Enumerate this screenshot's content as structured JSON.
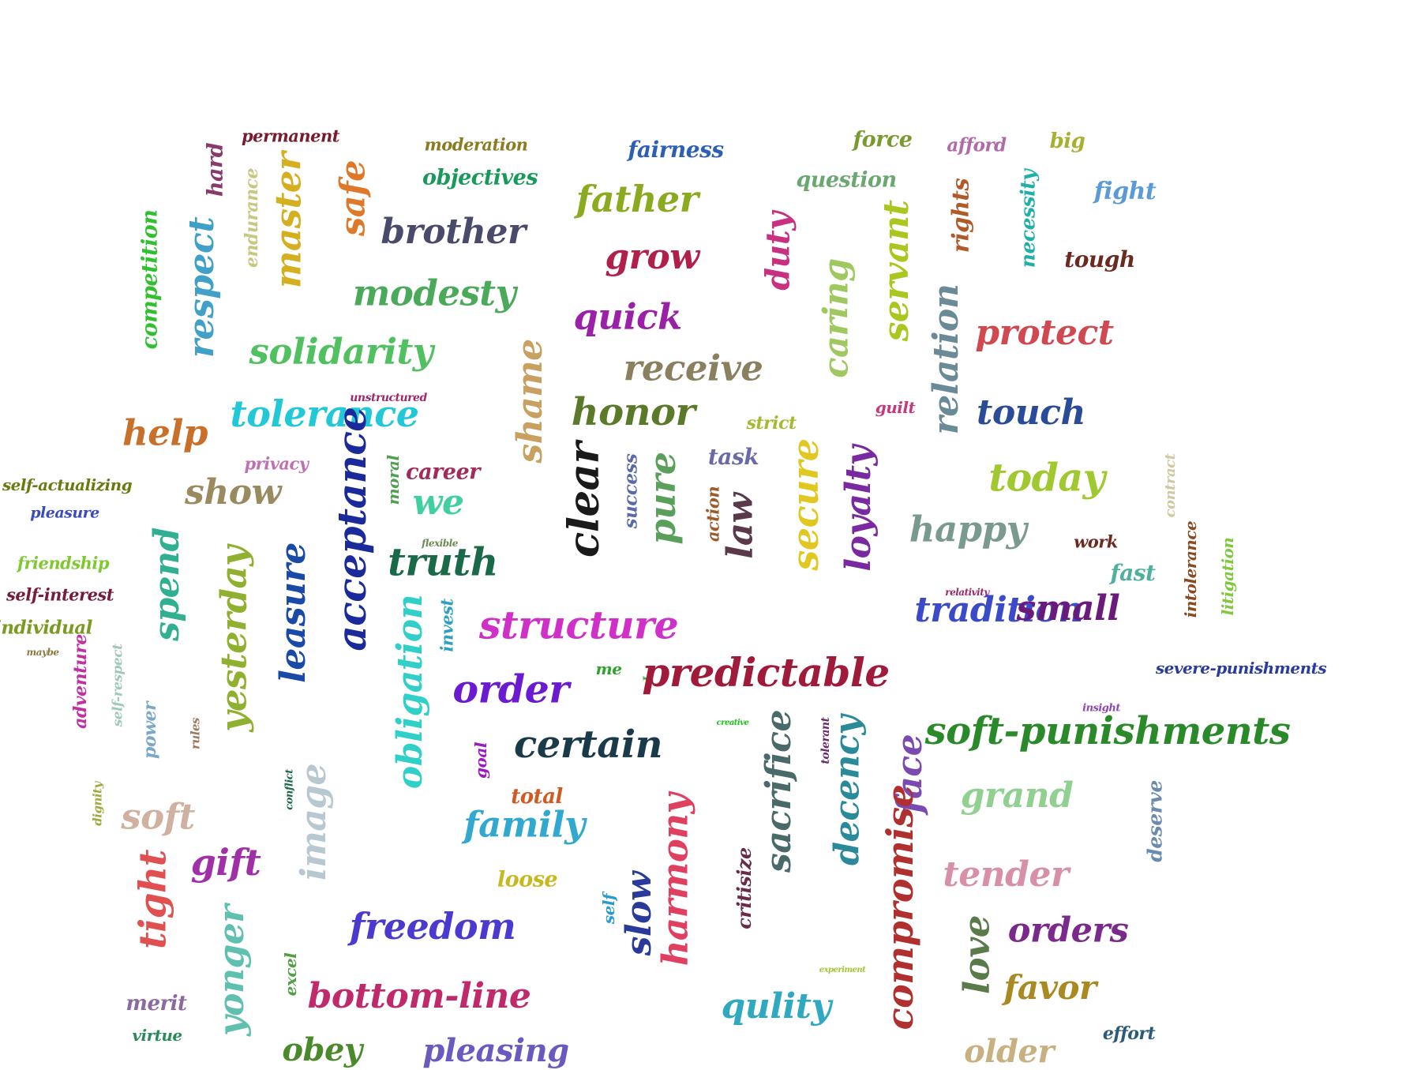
{
  "words": [
    {
      "text": "permanent",
      "color": "#7a1a2e"
    },
    {
      "text": "moderation",
      "color": "#8a7a20"
    },
    {
      "text": "fairness",
      "color": "#2d5fb5"
    },
    {
      "text": "force",
      "color": "#7a9a30"
    },
    {
      "text": "afford",
      "color": "#b06aa8"
    },
    {
      "text": "big",
      "color": "#a8b030"
    },
    {
      "text": "hard",
      "color": "#8a3a6a"
    },
    {
      "text": "endurance",
      "color": "#c6c880"
    },
    {
      "text": "master",
      "color": "#d4b020"
    },
    {
      "text": "safe",
      "color": "#e0782a"
    },
    {
      "text": "objectives",
      "color": "#1a9a5a"
    },
    {
      "text": "question",
      "color": "#6aa870"
    },
    {
      "text": "father",
      "color": "#8aaa20"
    },
    {
      "text": "rights",
      "color": "#b05a2a"
    },
    {
      "text": "necessity",
      "color": "#20b0a8"
    },
    {
      "text": "fight",
      "color": "#5a9ad8"
    },
    {
      "text": "competition",
      "color": "#30c030"
    },
    {
      "text": "respect",
      "color": "#40a0c8"
    },
    {
      "text": "brother",
      "color": "#4a4a6a"
    },
    {
      "text": "grow",
      "color": "#b0204a"
    },
    {
      "text": "duty",
      "color": "#c83080"
    },
    {
      "text": "servant",
      "color": "#a8c820"
    },
    {
      "text": "tough",
      "color": "#6a2a20"
    },
    {
      "text": "modesty",
      "color": "#4aaa5a"
    },
    {
      "text": "caring",
      "color": "#a0c860"
    },
    {
      "text": "relation",
      "color": "#6a8a98"
    },
    {
      "text": "protect",
      "color": "#d04850"
    },
    {
      "text": "quick",
      "color": "#9a20a8"
    },
    {
      "text": "solidarity",
      "color": "#50c060"
    },
    {
      "text": "receive",
      "color": "#8a8060"
    },
    {
      "text": "shame",
      "color": "#c8a060"
    },
    {
      "text": "tolerance",
      "color": "#20c8d8"
    },
    {
      "text": "unstructured",
      "color": "#9a2a6a"
    },
    {
      "text": "honor",
      "color": "#5a7a2a"
    },
    {
      "text": "strict",
      "color": "#a8b830"
    },
    {
      "text": "guilt",
      "color": "#c83878"
    },
    {
      "text": "touch",
      "color": "#2a4a9a"
    },
    {
      "text": "help",
      "color": "#c8702a"
    },
    {
      "text": "privacy",
      "color": "#c070b0"
    },
    {
      "text": "task",
      "color": "#6a6aa8"
    },
    {
      "text": "today",
      "color": "#a0c830"
    },
    {
      "text": "contract",
      "color": "#d0c8a0"
    },
    {
      "text": "self-actualizing",
      "color": "#6a7a10"
    },
    {
      "text": "show",
      "color": "#9a8a60"
    },
    {
      "text": "acceptance",
      "color": "#1a2a9a"
    },
    {
      "text": "moral",
      "color": "#50a050"
    },
    {
      "text": "career",
      "color": "#a02a5a"
    },
    {
      "text": "we",
      "color": "#40d0a0"
    },
    {
      "text": "clear",
      "color": "#1a1a1a"
    },
    {
      "text": "success",
      "color": "#5a6aa8"
    },
    {
      "text": "pure",
      "color": "#5aa05a"
    },
    {
      "text": "action",
      "color": "#a05a2a"
    },
    {
      "text": "law",
      "color": "#5a3a4a"
    },
    {
      "text": "secure",
      "color": "#e0c820"
    },
    {
      "text": "loyalty",
      "color": "#7a2aa0"
    },
    {
      "text": "happy",
      "color": "#7a9a90"
    },
    {
      "text": "work",
      "color": "#6a2a20"
    },
    {
      "text": "pleasure",
      "color": "#3a4ac0"
    },
    {
      "text": "flexible",
      "color": "#6a8a50"
    },
    {
      "text": "fast",
      "color": "#50b0a0"
    },
    {
      "text": "intolerance",
      "color": "#8a4a20"
    },
    {
      "text": "litigation",
      "color": "#80c840"
    },
    {
      "text": "friendship",
      "color": "#80c830"
    },
    {
      "text": "spend",
      "color": "#30b090"
    },
    {
      "text": "yesterday",
      "color": "#90b030"
    },
    {
      "text": "leasure",
      "color": "#1a4aa8"
    },
    {
      "text": "truth",
      "color": "#1a6a4a"
    },
    {
      "text": "relativity",
      "color": "#9a2a6a"
    },
    {
      "text": "tradition",
      "color": "#3a4ac8"
    },
    {
      "text": "self-interest",
      "color": "#7a1a3a"
    },
    {
      "text": "obligation",
      "color": "#30d0c8"
    },
    {
      "text": "invest",
      "color": "#30a0c0"
    },
    {
      "text": "structure",
      "color": "#d030c8"
    },
    {
      "text": "individual",
      "color": "#7a9a20"
    },
    {
      "text": "maybe",
      "color": "#8a7a40"
    },
    {
      "text": "adventure",
      "color": "#c030a0"
    },
    {
      "text": "self-respect",
      "color": "#a0c8b8"
    },
    {
      "text": "me",
      "color": "#30a030"
    },
    {
      "text": "I",
      "color": "#40b040"
    },
    {
      "text": "predictable",
      "color": "#a01a3a"
    },
    {
      "text": "small",
      "color": "#6a1a7a"
    },
    {
      "text": "severe-punishments",
      "color": "#2a3aa0"
    },
    {
      "text": "order",
      "color": "#6a1ad0"
    },
    {
      "text": "power",
      "color": "#7aa8c8"
    },
    {
      "text": "rules",
      "color": "#9a7a60"
    },
    {
      "text": "insight",
      "color": "#8a4ab0"
    },
    {
      "text": "creative",
      "color": "#20c020"
    },
    {
      "text": "tolerant",
      "color": "#6a2a6a"
    },
    {
      "text": "goal",
      "color": "#9a1ac0"
    },
    {
      "text": "certain",
      "color": "#1a3a4a"
    },
    {
      "text": "sacrifice",
      "color": "#4a6a6a"
    },
    {
      "text": "decency",
      "color": "#2a8a9a"
    },
    {
      "text": "face",
      "color": "#7a4ab0"
    },
    {
      "text": "soft-punishments",
      "color": "#2a8a2a"
    },
    {
      "text": "conflict",
      "color": "#1a6a4a"
    },
    {
      "text": "dignity",
      "color": "#a0a840"
    },
    {
      "text": "image",
      "color": "#b8c8d0"
    },
    {
      "text": "total",
      "color": "#d05a20"
    },
    {
      "text": "grand",
      "color": "#90d090"
    },
    {
      "text": "soft",
      "color": "#d0b0a0"
    },
    {
      "text": "family",
      "color": "#30a8d0"
    },
    {
      "text": "harmony",
      "color": "#e04060"
    },
    {
      "text": "deserve",
      "color": "#6a8ab0"
    },
    {
      "text": "gift",
      "color": "#a030a8"
    },
    {
      "text": "critisize",
      "color": "#6a2a4a"
    },
    {
      "text": "tender",
      "color": "#d890a8"
    },
    {
      "text": "tight",
      "color": "#e05050"
    },
    {
      "text": "loose",
      "color": "#c8b820"
    },
    {
      "text": "compromise",
      "color": "#b03030"
    },
    {
      "text": "freedom",
      "color": "#4a3ad0"
    },
    {
      "text": "self",
      "color": "#2a9ad0"
    },
    {
      "text": "slow",
      "color": "#2a3a9a"
    },
    {
      "text": "love",
      "color": "#5a7a4a"
    },
    {
      "text": "orders",
      "color": "#7a2a8a"
    },
    {
      "text": "yonger",
      "color": "#60c0b0"
    },
    {
      "text": "experiment",
      "color": "#a0c830"
    },
    {
      "text": "excel",
      "color": "#50a040"
    },
    {
      "text": "bottom-line",
      "color": "#c02a6a"
    },
    {
      "text": "favor",
      "color": "#a88a20"
    },
    {
      "text": "merit",
      "color": "#8a6aa0"
    },
    {
      "text": "qulity",
      "color": "#30a8c0"
    },
    {
      "text": "virtue",
      "color": "#2a8a5a"
    },
    {
      "text": "effort",
      "color": "#2a5a7a"
    },
    {
      "text": "obey",
      "color": "#4a8a2a"
    },
    {
      "text": "pleasing",
      "color": "#6a5ac0"
    },
    {
      "text": "older",
      "color": "#c8b080"
    }
  ]
}
